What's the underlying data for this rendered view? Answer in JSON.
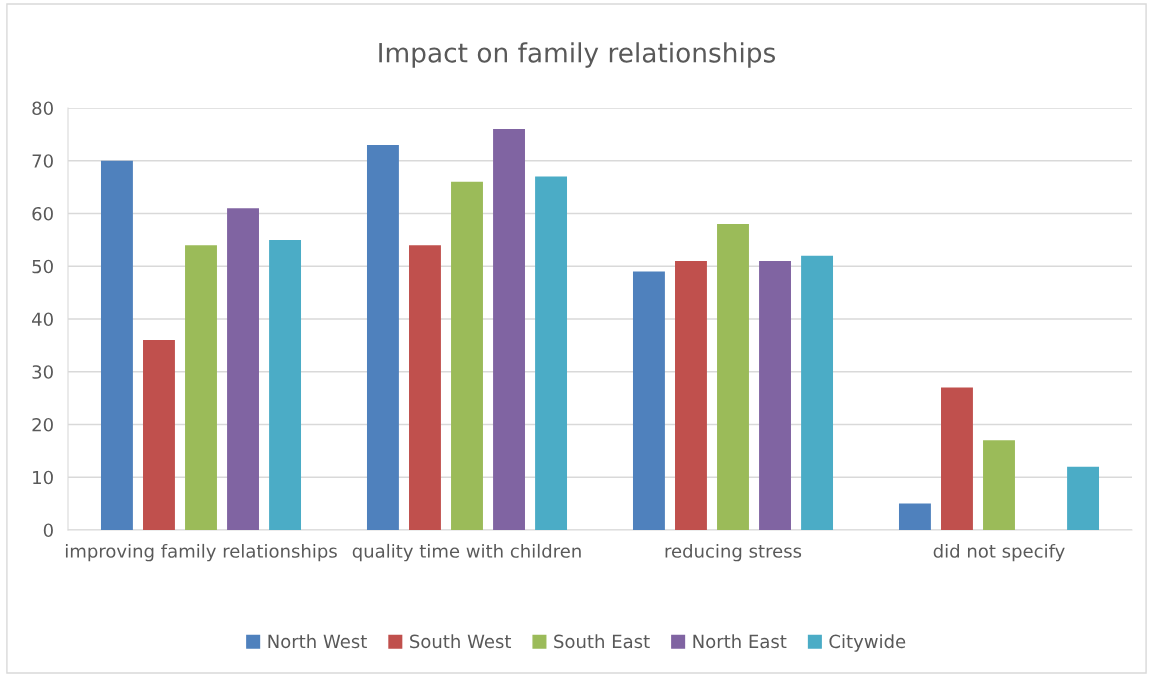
{
  "chart_data": {
    "type": "bar",
    "title": "Impact on family relationships",
    "categories": [
      "improving family relationships",
      "quality time with children",
      "reducing stress",
      "did not specify"
    ],
    "series": [
      {
        "name": "North West",
        "color": "#4f81bd",
        "values": [
          70,
          73,
          49,
          5
        ]
      },
      {
        "name": "South West",
        "color": "#c0504d",
        "values": [
          36,
          54,
          51,
          27
        ]
      },
      {
        "name": "South East",
        "color": "#9bbb59",
        "values": [
          54,
          66,
          58,
          17
        ]
      },
      {
        "name": "North East",
        "color": "#8064a2",
        "values": [
          61,
          76,
          51,
          0
        ]
      },
      {
        "name": "Citywide",
        "color": "#4bacc6",
        "values": [
          55,
          67,
          52,
          12
        ]
      }
    ],
    "ylim": [
      0,
      80
    ],
    "yticks": [
      0,
      10,
      20,
      30,
      40,
      50,
      60,
      70,
      80
    ],
    "grid": "y",
    "legend": "bottom"
  }
}
